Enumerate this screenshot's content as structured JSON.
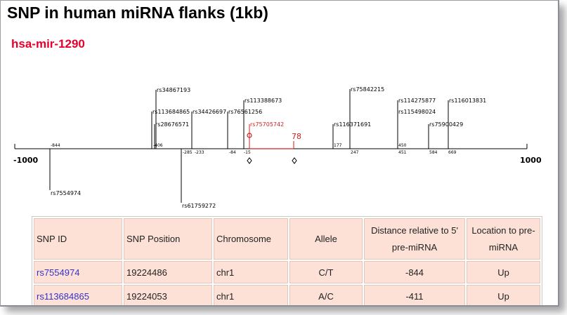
{
  "page_title": "SNP in human miRNA flanks (1kb)",
  "mirna_name": "hsa-mir-1290",
  "colors": {
    "title": "#000000",
    "mirna": "#e8002a",
    "cell_bg": "#fde1d6",
    "link": "#3333cc",
    "precursor": "#cc2222"
  },
  "diagram": {
    "left_end_label": "-1000",
    "right_end_label": "1000",
    "precursor_length_label": "78",
    "highlighted_snp": "rs75705742",
    "snps_above": [
      {
        "id": "rs34867193",
        "pos": -410
      },
      {
        "id": "rs113684865",
        "pos": -411
      },
      {
        "id": "rs28676571",
        "pos": -406
      },
      {
        "id": "rs34426697",
        "pos": -233
      },
      {
        "id": "rs76561256",
        "pos": -84
      },
      {
        "id": "rs113388673",
        "pos": -15
      },
      {
        "id": "rs75705742",
        "pos": -5
      },
      {
        "id": "rs116371691",
        "pos": 177
      },
      {
        "id": "rs75842215",
        "pos": 247
      },
      {
        "id": "rs114275877",
        "pos": 450
      },
      {
        "id": "rs115498024",
        "pos": 451
      },
      {
        "id": "rs75900429",
        "pos": 584
      },
      {
        "id": "rs116013831",
        "pos": 669
      }
    ],
    "snps_below": [
      {
        "id": "rs7554974",
        "pos": -844
      },
      {
        "id": "rs61759272",
        "pos": -285
      }
    ],
    "tick_labels": [
      "-844",
      "-406",
      "-285",
      "-233",
      "-84",
      "-15",
      "177",
      "247",
      "450",
      "451",
      "584",
      "669"
    ]
  },
  "table": {
    "headers": [
      "SNP ID",
      "SNP Position",
      "Chromosome",
      "Allele",
      "Distance relative to 5' pre-miRNA",
      "Location to pre-miRNA"
    ],
    "rows": [
      {
        "snp_id": "rs7554974",
        "position": "19224486",
        "chromosome": "chr1",
        "allele": "C/T",
        "distance": "-844",
        "location": "Up"
      },
      {
        "snp_id": "rs113684865",
        "position": "19224053",
        "chromosome": "chr1",
        "allele": "A/C",
        "distance": "-411",
        "location": "Up"
      }
    ]
  }
}
